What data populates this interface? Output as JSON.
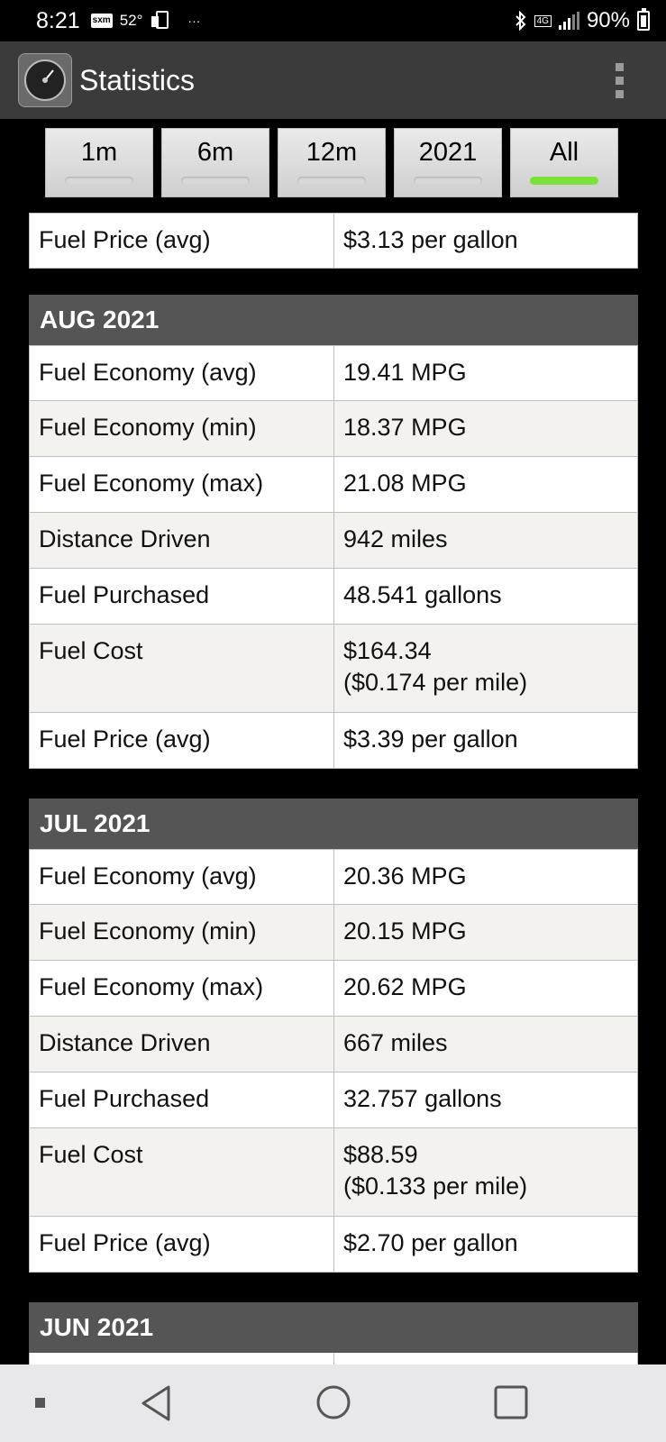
{
  "status_bar": {
    "time": "8:21",
    "sxm": "sxm",
    "temperature": "52°",
    "dots": "···",
    "network": "4G",
    "battery": "90%"
  },
  "app_bar": {
    "title": "Statistics"
  },
  "tabs": [
    {
      "label": "1m",
      "active": false
    },
    {
      "label": "6m",
      "active": false
    },
    {
      "label": "12m",
      "active": false
    },
    {
      "label": "2021",
      "active": false
    },
    {
      "label": "All",
      "active": true
    }
  ],
  "partial_section": {
    "rows": [
      {
        "label": "Fuel Price (avg)",
        "value": "$3.13 per gallon"
      }
    ]
  },
  "sections": [
    {
      "header": "AUG 2021",
      "rows": [
        {
          "label": "Fuel Economy (avg)",
          "value": "19.41 MPG"
        },
        {
          "label": "Fuel Economy (min)",
          "value": "18.37 MPG"
        },
        {
          "label": "Fuel Economy (max)",
          "value": "21.08 MPG"
        },
        {
          "label": "Distance Driven",
          "value": "942 miles"
        },
        {
          "label": "Fuel Purchased",
          "value": "48.541 gallons"
        },
        {
          "label": "Fuel Cost",
          "value": "$164.34",
          "value2": "($0.174 per mile)"
        },
        {
          "label": "Fuel Price (avg)",
          "value": "$3.39 per gallon"
        }
      ]
    },
    {
      "header": "JUL 2021",
      "rows": [
        {
          "label": "Fuel Economy (avg)",
          "value": "20.36 MPG"
        },
        {
          "label": "Fuel Economy (min)",
          "value": "20.15 MPG"
        },
        {
          "label": "Fuel Economy (max)",
          "value": "20.62 MPG"
        },
        {
          "label": "Distance Driven",
          "value": "667 miles"
        },
        {
          "label": "Fuel Purchased",
          "value": "32.757 gallons"
        },
        {
          "label": "Fuel Cost",
          "value": "$88.59",
          "value2": "($0.133 per mile)"
        },
        {
          "label": "Fuel Price (avg)",
          "value": "$2.70 per gallon"
        }
      ]
    },
    {
      "header": "JUN 2021",
      "rows": []
    }
  ],
  "colors": {
    "header_bg": "#555555",
    "row_alt_bg": "#f3f2ef",
    "active_tab_indicator": "#7ee03a"
  }
}
